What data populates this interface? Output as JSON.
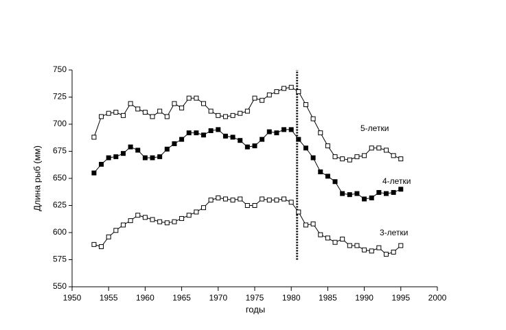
{
  "chart_data": {
    "type": "line",
    "xlabel": "годы",
    "ylabel": "Длина рыб (мм)",
    "x": [
      1953,
      1954,
      1955,
      1956,
      1957,
      1958,
      1959,
      1960,
      1961,
      1962,
      1963,
      1964,
      1965,
      1966,
      1967,
      1968,
      1969,
      1970,
      1971,
      1972,
      1973,
      1974,
      1975,
      1976,
      1977,
      1978,
      1979,
      1980,
      1981,
      1982,
      1983,
      1984,
      1985,
      1986,
      1987,
      1988,
      1989,
      1990,
      1991,
      1992,
      1993,
      1994,
      1995
    ],
    "series": [
      {
        "name": "5-летки",
        "color": "#000000",
        "filled": false,
        "values": [
          688,
          707,
          710,
          711,
          708,
          719,
          714,
          711,
          707,
          712,
          707,
          719,
          715,
          724,
          724,
          719,
          712,
          708,
          707,
          708,
          710,
          712,
          724,
          722,
          727,
          730,
          733,
          734,
          730,
          718,
          705,
          692,
          680,
          670,
          668,
          667,
          670,
          671,
          678,
          678,
          676,
          671,
          668
        ]
      },
      {
        "name": "4-летки",
        "color": "#000000",
        "filled": true,
        "values": [
          655,
          663,
          669,
          670,
          673,
          679,
          676,
          669,
          669,
          670,
          677,
          682,
          686,
          692,
          692,
          690,
          694,
          695,
          689,
          688,
          685,
          679,
          680,
          686,
          693,
          692,
          695,
          695,
          686,
          678,
          669,
          656,
          652,
          647,
          636,
          635,
          636,
          631,
          632,
          637,
          636,
          637,
          640
        ]
      },
      {
        "name": "3-летки",
        "color": "#000000",
        "filled": false,
        "values": [
          589,
          587,
          596,
          602,
          607,
          611,
          616,
          614,
          612,
          610,
          609,
          610,
          613,
          616,
          619,
          623,
          630,
          632,
          631,
          630,
          631,
          625,
          625,
          631,
          630,
          630,
          631,
          628,
          619,
          607,
          608,
          598,
          595,
          591,
          594,
          588,
          588,
          584,
          583,
          586,
          580,
          582,
          588
        ]
      }
    ],
    "xlim": [
      1950,
      2000
    ],
    "xticks": [
      1950,
      1955,
      1960,
      1965,
      1970,
      1975,
      1980,
      1985,
      1990,
      1995,
      2000
    ],
    "ylim": [
      550,
      750
    ],
    "yticks": [
      550,
      575,
      600,
      625,
      650,
      675,
      700,
      725,
      750
    ],
    "reference_line": {
      "x": 1980.8,
      "from": 575,
      "to": 750
    }
  }
}
